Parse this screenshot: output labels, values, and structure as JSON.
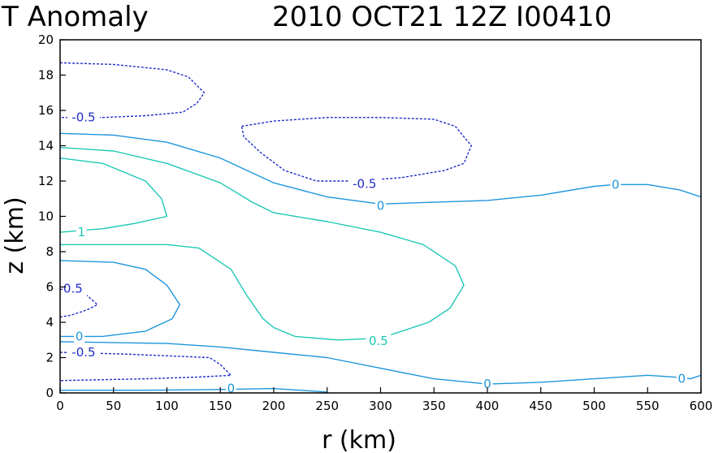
{
  "chart_data": {
    "type": "line",
    "title_left": "T Anomaly",
    "title_right": "2010 OCT21 12Z  I00410",
    "xlabel": "r (km)",
    "ylabel": "z (km)",
    "xlim": [
      0,
      600
    ],
    "ylim": [
      0,
      20
    ],
    "xticks": [
      "0",
      "50",
      "100",
      "150",
      "200",
      "250",
      "300",
      "350",
      "400",
      "450",
      "500",
      "550",
      "600"
    ],
    "yticks": [
      "0",
      "2",
      "4",
      "6",
      "8",
      "10",
      "12",
      "14",
      "16",
      "18",
      "20"
    ],
    "grid": false,
    "colors": {
      "negative": "#1e2dc8",
      "zero": "#1e96dc",
      "positive": "#1ec8b4"
    },
    "contours": [
      {
        "id": "neg-upper-left",
        "level": -0.5,
        "style": "dashed",
        "color_key": "negative",
        "points": [
          [
            0,
            18.7
          ],
          [
            50,
            18.6
          ],
          [
            100,
            18.3
          ],
          [
            120,
            17.9
          ],
          [
            135,
            17.0
          ],
          [
            128,
            16.4
          ],
          [
            115,
            15.9
          ],
          [
            80,
            15.7
          ],
          [
            40,
            15.6
          ],
          [
            0,
            15.6
          ]
        ],
        "labels": [
          {
            "text": "-0.5",
            "x": 22,
            "y": 15.6
          }
        ]
      },
      {
        "id": "neg-upper-right",
        "level": -0.5,
        "style": "dashed",
        "color_key": "negative",
        "points": [
          [
            170,
            15.1
          ],
          [
            200,
            15.4
          ],
          [
            250,
            15.6
          ],
          [
            300,
            15.6
          ],
          [
            350,
            15.5
          ],
          [
            370,
            15.1
          ],
          [
            385,
            14.0
          ],
          [
            378,
            13.0
          ],
          [
            360,
            12.6
          ],
          [
            320,
            12.2
          ],
          [
            280,
            12.0
          ],
          [
            240,
            12.0
          ],
          [
            210,
            12.6
          ],
          [
            188,
            13.6
          ],
          [
            172,
            14.5
          ],
          [
            170,
            15.1
          ]
        ],
        "labels": [
          {
            "text": "-0.5",
            "x": 285,
            "y": 11.85
          }
        ]
      },
      {
        "id": "zero-upper",
        "level": 0,
        "style": "solid",
        "color_key": "zero",
        "points": [
          [
            0,
            14.7
          ],
          [
            50,
            14.6
          ],
          [
            100,
            14.2
          ],
          [
            150,
            13.3
          ],
          [
            200,
            11.9
          ],
          [
            250,
            11.1
          ],
          [
            300,
            10.7
          ],
          [
            350,
            10.8
          ],
          [
            400,
            10.9
          ],
          [
            450,
            11.2
          ],
          [
            500,
            11.7
          ],
          [
            520,
            11.8
          ],
          [
            550,
            11.8
          ],
          [
            580,
            11.5
          ],
          [
            600,
            11.1
          ]
        ],
        "labels": [
          {
            "text": "0",
            "x": 300,
            "y": 10.6
          },
          {
            "text": "0",
            "x": 520,
            "y": 11.8
          }
        ]
      },
      {
        "id": "zero-lower",
        "level": 0,
        "style": "solid",
        "color_key": "zero",
        "points": [
          [
            0,
            2.9
          ],
          [
            100,
            2.8
          ],
          [
            150,
            2.6
          ],
          [
            200,
            2.3
          ],
          [
            250,
            2.0
          ],
          [
            300,
            1.4
          ],
          [
            350,
            0.8
          ],
          [
            400,
            0.5
          ],
          [
            450,
            0.6
          ],
          [
            500,
            0.8
          ],
          [
            550,
            1.0
          ],
          [
            575,
            0.9
          ],
          [
            590,
            0.8
          ],
          [
            600,
            1.0
          ]
        ],
        "labels": [
          {
            "text": "0",
            "x": 400,
            "y": 0.5
          },
          {
            "text": "0",
            "x": 582,
            "y": 0.8
          }
        ]
      },
      {
        "id": "zero-mid",
        "level": 0,
        "style": "solid",
        "color_key": "zero",
        "points": [
          [
            0,
            7.5
          ],
          [
            50,
            7.4
          ],
          [
            80,
            7.0
          ],
          [
            100,
            6.1
          ],
          [
            112,
            5.0
          ],
          [
            105,
            4.2
          ],
          [
            80,
            3.5
          ],
          [
            40,
            3.2
          ],
          [
            0,
            3.2
          ]
        ],
        "labels": [
          {
            "text": "0",
            "x": 18,
            "y": 3.2
          }
        ]
      },
      {
        "id": "zero-bottom",
        "level": 0,
        "style": "solid",
        "color_key": "zero",
        "points": [
          [
            0,
            0.15
          ],
          [
            80,
            0.15
          ],
          [
            160,
            0.2
          ],
          [
            200,
            0.25
          ],
          [
            250,
            0.05
          ]
        ],
        "labels": [
          {
            "text": "0",
            "x": 160,
            "y": 0.25
          }
        ]
      },
      {
        "id": "half-upper",
        "level": 0.5,
        "style": "solid",
        "color_key": "positive",
        "points": [
          [
            0,
            13.9
          ],
          [
            50,
            13.7
          ],
          [
            100,
            13.0
          ],
          [
            150,
            11.9
          ],
          [
            180,
            10.8
          ],
          [
            200,
            10.2
          ],
          [
            250,
            9.7
          ],
          [
            300,
            9.1
          ],
          [
            340,
            8.4
          ],
          [
            370,
            7.2
          ],
          [
            378,
            6.1
          ],
          [
            365,
            4.8
          ],
          [
            345,
            4.0
          ],
          [
            300,
            3.1
          ],
          [
            260,
            3.0
          ],
          [
            220,
            3.2
          ],
          [
            200,
            3.7
          ],
          [
            190,
            4.2
          ],
          [
            175,
            5.5
          ],
          [
            160,
            7.0
          ],
          [
            130,
            8.2
          ],
          [
            100,
            8.4
          ],
          [
            0,
            8.4
          ]
        ],
        "labels": [
          {
            "text": "0.5",
            "x": 298,
            "y": 2.95
          }
        ]
      },
      {
        "id": "one-upper",
        "level": 1,
        "style": "solid",
        "color_key": "positive",
        "points": [
          [
            0,
            13.3
          ],
          [
            40,
            13.0
          ],
          [
            80,
            12.0
          ],
          [
            95,
            11.0
          ],
          [
            100,
            10.0
          ],
          [
            70,
            9.6
          ],
          [
            40,
            9.3
          ],
          [
            0,
            9.1
          ]
        ],
        "labels": [
          {
            "text": "1",
            "x": 20,
            "y": 9.1
          }
        ]
      },
      {
        "id": "neg-mid",
        "level": -0.5,
        "style": "dashed",
        "color_key": "negative",
        "points": [
          [
            0,
            6.2
          ],
          [
            20,
            5.8
          ],
          [
            35,
            5.0
          ],
          [
            25,
            4.7
          ],
          [
            10,
            4.4
          ],
          [
            0,
            4.3
          ]
        ],
        "labels": [
          {
            "text": "-0.5",
            "x": 10,
            "y": 5.9
          }
        ]
      },
      {
        "id": "neg-bottom",
        "level": -0.5,
        "style": "dashed",
        "color_key": "negative",
        "points": [
          [
            0,
            2.3
          ],
          [
            60,
            2.2
          ],
          [
            100,
            2.1
          ],
          [
            140,
            2.0
          ],
          [
            150,
            1.6
          ],
          [
            160,
            1.0
          ],
          [
            130,
            0.9
          ],
          [
            80,
            0.8
          ],
          [
            0,
            0.7
          ]
        ],
        "labels": [
          {
            "text": "-0.5",
            "x": 22,
            "y": 2.3
          }
        ]
      }
    ]
  }
}
